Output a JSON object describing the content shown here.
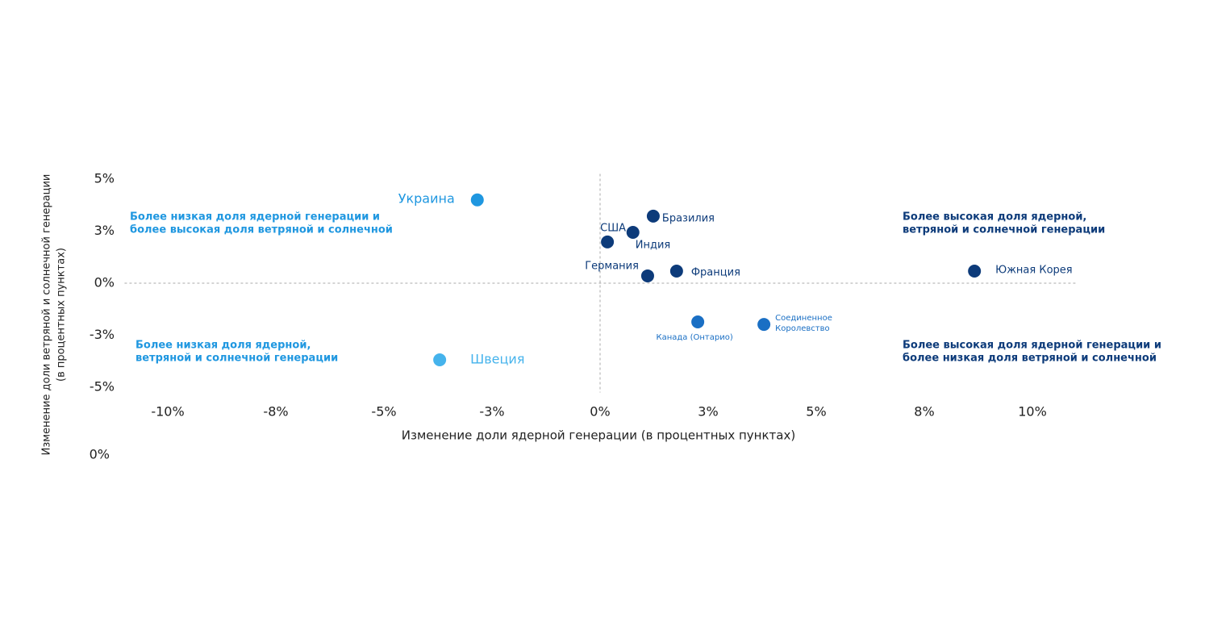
{
  "chart_data": {
    "type": "scatter",
    "x_label": "Изменение доли ядерной генерации (в процентных пунктах)",
    "y_label": [
      "Изменение доли ветряной и солнечной генерации",
      "(в процентных пунктах)"
    ],
    "xlim": [
      -11,
      11
    ],
    "ylim": [
      -5.25,
      5.25
    ],
    "xticks": [
      {
        "value": -10,
        "label": "-10%"
      },
      {
        "value": -7.5,
        "label": "-8%"
      },
      {
        "value": -5,
        "label": "-5%"
      },
      {
        "value": -2.5,
        "label": "-3%"
      },
      {
        "value": 0,
        "label": "0%"
      },
      {
        "value": 2.5,
        "label": "3%"
      },
      {
        "value": 5,
        "label": "5%"
      },
      {
        "value": 7.5,
        "label": "8%"
      },
      {
        "value": 10,
        "label": "10%"
      }
    ],
    "yticks": [
      {
        "value": 5,
        "label": "5%"
      },
      {
        "value": 2.5,
        "label": "3%"
      },
      {
        "value": 0,
        "label": "0%"
      },
      {
        "value": -2.5,
        "label": "-3%"
      },
      {
        "value": -5,
        "label": "-5%"
      }
    ],
    "extra_label": "0%",
    "points": [
      {
        "label": "Украина",
        "x": -2.84,
        "y": 4.0,
        "color": "#1f97e0"
      },
      {
        "label": "Швеция",
        "x": -3.71,
        "y": -3.68,
        "color": "#45b3ec"
      },
      {
        "label": "Бразилия",
        "x": 1.23,
        "y": 3.22,
        "color": "#0d3b7a"
      },
      {
        "label": "США",
        "x": 0.17,
        "y": 1.98,
        "color": "#0d3b7a"
      },
      {
        "label": "Индия",
        "x": 0.76,
        "y": 2.44,
        "color": "#0d3b7a"
      },
      {
        "label": "Германия",
        "x": 1.1,
        "y": 0.35,
        "color": "#0d3b7a"
      },
      {
        "label": "Франция",
        "x": 1.77,
        "y": 0.58,
        "color": "#0d3b7a"
      },
      {
        "label": "Южная Корея",
        "x": 8.66,
        "y": 0.58,
        "color": "#0d3b7a"
      },
      {
        "label": "Канада (Онтарио)",
        "x": 2.26,
        "y": -1.86,
        "color": "#1a6fc4"
      },
      {
        "label": [
          "Соединенное",
          "Королевство"
        ],
        "x": 3.79,
        "y": -1.98,
        "color": "#1a6fc4"
      }
    ],
    "notes": [
      {
        "lines": [
          "Более низкая доля ядерной генерации и",
          "более высокая доля ветряной и солнечной"
        ],
        "color": "#1f97e0"
      },
      {
        "lines": [
          "Более высокая доля ядерной,",
          "ветряной и солнечной генерации"
        ],
        "color": "#0d3b7a"
      },
      {
        "lines": [
          "Более низкая доля ядерной,",
          "ветряной и солнечной генерации"
        ],
        "color": "#1f97e0"
      },
      {
        "lines": [
          "Более высокая доля ядерной генерации и",
          "более низкая доля ветряной и солнечной"
        ],
        "color": "#0d3b7a"
      }
    ]
  }
}
